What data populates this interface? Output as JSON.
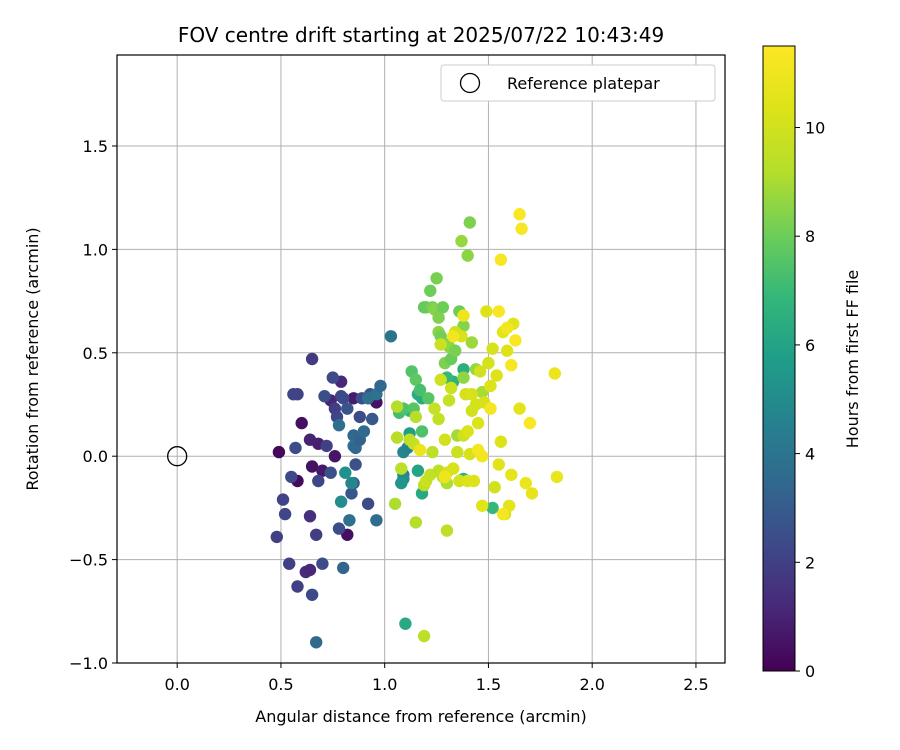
{
  "chart_data": {
    "type": "scatter",
    "title": "FOV centre drift starting at 2025/07/22 10:43:49",
    "xlabel": "Angular distance from reference (arcmin)",
    "ylabel": "Rotation from reference (arcmin)",
    "xlim": [
      -0.29,
      2.64
    ],
    "ylim": [
      -1.0,
      1.94
    ],
    "xticks": [
      "0.0",
      "0.5",
      "1.0",
      "1.5",
      "2.0",
      "2.5"
    ],
    "yticks": [
      "−1.0",
      "−0.5",
      "0.0",
      "0.5",
      "1.0",
      "1.5"
    ],
    "grid": true,
    "legend": {
      "placement": "top-right",
      "entries": [
        "Reference platepar"
      ]
    },
    "reference_point": {
      "x": 0.0,
      "y": 0.0,
      "name": "Reference platepar"
    },
    "colorbar": {
      "label": "Hours from first FF file",
      "colormap": "viridis",
      "range": [
        0,
        11.5
      ],
      "ticks": [
        "0",
        "2",
        "4",
        "6",
        "8",
        "10"
      ]
    },
    "points": [
      [
        0.49,
        0.02,
        0.2
      ],
      [
        0.58,
        -0.12,
        0.3
      ],
      [
        0.6,
        0.16,
        0.4
      ],
      [
        0.65,
        -0.05,
        0.5
      ],
      [
        0.7,
        -0.07,
        0.7
      ],
      [
        0.76,
        0.0,
        0.6
      ],
      [
        0.82,
        -0.38,
        0.4
      ],
      [
        0.85,
        0.28,
        0.8
      ],
      [
        0.96,
        0.26,
        0.5
      ],
      [
        0.68,
        0.06,
        0.9
      ],
      [
        0.64,
        0.08,
        1.0
      ],
      [
        0.74,
        0.27,
        1.1
      ],
      [
        0.79,
        0.36,
        1.2
      ],
      [
        0.62,
        -0.56,
        1.3
      ],
      [
        0.64,
        -0.55,
        1.2
      ],
      [
        0.64,
        -0.29,
        1.4
      ],
      [
        0.48,
        -0.39,
        2.0
      ],
      [
        0.51,
        -0.21,
        2.1
      ],
      [
        0.52,
        -0.28,
        2.2
      ],
      [
        0.54,
        -0.52,
        2.0
      ],
      [
        0.55,
        -0.1,
        2.3
      ],
      [
        0.56,
        0.3,
        2.2
      ],
      [
        0.58,
        0.3,
        2.1
      ],
      [
        0.57,
        0.04,
        2.4
      ],
      [
        0.58,
        -0.63,
        2.0
      ],
      [
        0.65,
        -0.67,
        2.3
      ],
      [
        0.65,
        0.47,
        1.8
      ],
      [
        0.67,
        -0.38,
        1.9
      ],
      [
        0.68,
        -0.12,
        2.2
      ],
      [
        0.7,
        -0.52,
        2.4
      ],
      [
        0.71,
        0.29,
        2.5
      ],
      [
        0.72,
        0.05,
        2.0
      ],
      [
        0.74,
        -0.08,
        2.6
      ],
      [
        0.75,
        0.38,
        2.4
      ],
      [
        0.76,
        0.23,
        1.9
      ],
      [
        0.77,
        0.19,
        2.2
      ],
      [
        0.78,
        -0.35,
        2.5
      ],
      [
        0.79,
        0.29,
        2.1
      ],
      [
        0.8,
        0.28,
        2.3
      ],
      [
        0.82,
        0.23,
        2.7
      ],
      [
        0.84,
        -0.18,
        2.8
      ],
      [
        0.85,
        -0.13,
        3.0
      ],
      [
        0.86,
        -0.04,
        2.6
      ],
      [
        0.88,
        0.19,
        2.4
      ],
      [
        0.89,
        0.28,
        2.5
      ],
      [
        0.92,
        -0.23,
        2.3
      ],
      [
        0.93,
        0.3,
        2.7
      ],
      [
        0.94,
        0.18,
        2.9
      ],
      [
        0.67,
        -0.9,
        3.6
      ],
      [
        0.78,
        0.15,
        3.7
      ],
      [
        0.8,
        -0.54,
        3.3
      ],
      [
        0.83,
        -0.31,
        3.8
      ],
      [
        0.85,
        0.1,
        3.4
      ],
      [
        0.85,
        0.05,
        3.9
      ],
      [
        0.86,
        0.04,
        3.5
      ],
      [
        0.88,
        0.08,
        3.2
      ],
      [
        0.9,
        0.12,
        3.6
      ],
      [
        0.92,
        0.28,
        3.8
      ],
      [
        0.96,
        -0.31,
        3.7
      ],
      [
        0.96,
        0.3,
        3.9
      ],
      [
        0.98,
        0.34,
        3.4
      ],
      [
        1.03,
        0.58,
        4.0
      ],
      [
        1.09,
        -0.09,
        4.6
      ],
      [
        1.09,
        -0.11,
        5.0
      ],
      [
        1.09,
        0.02,
        4.8
      ],
      [
        1.11,
        0.04,
        4.6
      ],
      [
        0.79,
        -0.22,
        5.0
      ],
      [
        0.81,
        -0.08,
        5.2
      ],
      [
        0.84,
        -0.13,
        4.8
      ],
      [
        1.08,
        -0.13,
        5.4
      ],
      [
        1.1,
        -0.81,
        6.2
      ],
      [
        1.12,
        0.11,
        5.8
      ],
      [
        1.16,
        -0.07,
        6.0
      ],
      [
        1.18,
        -0.18,
        6.2
      ],
      [
        1.16,
        0.3,
        6.4
      ],
      [
        1.18,
        0.28,
        6.3
      ],
      [
        1.33,
        0.36,
        6.6
      ],
      [
        1.38,
        0.42,
        6.5
      ],
      [
        1.38,
        -0.11,
        6.7
      ],
      [
        1.52,
        -0.25,
        6.9
      ],
      [
        1.12,
        0.22,
        6.8
      ],
      [
        1.3,
        0.38,
        6.9
      ],
      [
        1.07,
        0.21,
        7.2
      ],
      [
        1.09,
        0.23,
        7.4
      ],
      [
        1.13,
        0.41,
        7.5
      ],
      [
        1.14,
        0.23,
        7.6
      ],
      [
        1.15,
        0.37,
        7.7
      ],
      [
        1.17,
        0.32,
        7.3
      ],
      [
        1.18,
        0.12,
        7.4
      ],
      [
        1.19,
        0.72,
        7.8
      ],
      [
        1.2,
        0.72,
        7.9
      ],
      [
        1.21,
        0.28,
        7.6
      ],
      [
        1.22,
        0.8,
        8.0
      ],
      [
        1.23,
        0.72,
        8.2
      ],
      [
        1.24,
        0.71,
        8.4
      ],
      [
        1.25,
        0.86,
        8.2
      ],
      [
        1.26,
        0.67,
        8.3
      ],
      [
        1.26,
        0.6,
        8.5
      ],
      [
        1.27,
        0.58,
        8.1
      ],
      [
        1.28,
        0.72,
        8.0
      ],
      [
        1.29,
        0.45,
        8.3
      ],
      [
        1.3,
        0.54,
        8.4
      ],
      [
        1.31,
        0.53,
        8.6
      ],
      [
        1.32,
        0.47,
        7.9
      ],
      [
        1.34,
        0.51,
        8.2
      ],
      [
        1.36,
        0.7,
        8.0
      ],
      [
        1.37,
        1.04,
        8.7
      ],
      [
        1.38,
        0.63,
        8.4
      ],
      [
        1.38,
        0.38,
        8.6
      ],
      [
        1.4,
        0.97,
        8.5
      ],
      [
        1.41,
        1.13,
        8.3
      ],
      [
        1.42,
        0.55,
        8.8
      ],
      [
        1.44,
        0.42,
        8.7
      ],
      [
        1.47,
        0.31,
        9.0
      ],
      [
        1.35,
        0.1,
        8.9
      ],
      [
        1.3,
        -0.13,
        9.1
      ],
      [
        1.06,
        0.24,
        9.2
      ],
      [
        1.06,
        0.09,
        9.3
      ],
      [
        1.08,
        -0.06,
        9.4
      ],
      [
        1.05,
        -0.23,
        9.1
      ],
      [
        1.12,
        0.08,
        9.5
      ],
      [
        1.14,
        0.06,
        9.6
      ],
      [
        1.15,
        -0.32,
        9.2
      ],
      [
        1.15,
        0.19,
        9.3
      ],
      [
        1.19,
        -0.87,
        9.4
      ],
      [
        1.19,
        -0.14,
        9.5
      ],
      [
        1.2,
        -0.12,
        9.8
      ],
      [
        1.22,
        -0.09,
        9.6
      ],
      [
        1.23,
        0.02,
        9.4
      ],
      [
        1.24,
        0.23,
        9.7
      ],
      [
        1.26,
        -0.07,
        9.5
      ],
      [
        1.26,
        0.18,
        9.6
      ],
      [
        1.27,
        0.37,
        9.9
      ],
      [
        1.27,
        0.54,
        9.8
      ],
      [
        1.28,
        -0.1,
        9.4
      ],
      [
        1.29,
        0.08,
        10.0
      ],
      [
        1.3,
        -0.36,
        9.5
      ],
      [
        1.3,
        -0.08,
        10.1
      ],
      [
        1.31,
        0.27,
        9.7
      ],
      [
        1.32,
        0.33,
        9.9
      ],
      [
        1.33,
        -0.06,
        10.2
      ],
      [
        1.34,
        0.6,
        10.0
      ],
      [
        1.35,
        0.02,
        9.8
      ],
      [
        1.36,
        -0.12,
        10.1
      ],
      [
        1.37,
        0.58,
        10.2
      ],
      [
        1.38,
        0.1,
        9.9
      ],
      [
        1.39,
        0.3,
        10.1
      ],
      [
        1.4,
        0.12,
        10.3
      ],
      [
        1.41,
        0.01,
        10.2
      ],
      [
        1.42,
        0.22,
        10.0
      ],
      [
        1.43,
        -0.12,
        10.4
      ],
      [
        1.44,
        0.25,
        10.1
      ],
      [
        1.45,
        0.16,
        10.3
      ],
      [
        1.46,
        0.41,
        10.0
      ],
      [
        1.47,
        -0.24,
        10.5
      ],
      [
        1.48,
        0.26,
        10.2
      ],
      [
        1.49,
        0.7,
        10.4
      ],
      [
        1.5,
        0.45,
        10.1
      ],
      [
        1.51,
        0.34,
        10.3
      ],
      [
        1.52,
        0.52,
        10.2
      ],
      [
        1.53,
        -0.15,
        10.0
      ],
      [
        1.54,
        0.39,
        10.4
      ],
      [
        1.55,
        -0.04,
        10.5
      ],
      [
        1.56,
        0.07,
        10.3
      ],
      [
        1.57,
        0.6,
        10.6
      ],
      [
        1.58,
        -0.28,
        10.2
      ],
      [
        1.59,
        0.51,
        10.4
      ],
      [
        1.6,
        -0.24,
        10.6
      ],
      [
        1.61,
        -0.09,
        10.7
      ],
      [
        1.62,
        0.64,
        10.5
      ],
      [
        1.65,
        0.23,
        10.6
      ],
      [
        1.68,
        -0.13,
        10.8
      ],
      [
        1.71,
        -0.18,
        10.7
      ],
      [
        1.82,
        0.4,
        10.9
      ],
      [
        1.83,
        -0.1,
        10.8
      ],
      [
        1.4,
        -0.12,
        10.3
      ],
      [
        1.42,
        0.3,
        10.2
      ],
      [
        1.17,
        0.03,
        10.9
      ],
      [
        1.29,
        -0.1,
        11.0
      ],
      [
        1.33,
        0.58,
        11.1
      ],
      [
        1.38,
        0.68,
        11.0
      ],
      [
        1.45,
        0.03,
        11.2
      ],
      [
        1.47,
        0.0,
        11.1
      ],
      [
        1.51,
        0.23,
        11.2
      ],
      [
        1.55,
        0.7,
        11.3
      ],
      [
        1.56,
        0.95,
        11.3
      ],
      [
        1.57,
        -0.28,
        11.2
      ],
      [
        1.59,
        0.62,
        11.1
      ],
      [
        1.61,
        0.44,
        11.3
      ],
      [
        1.63,
        0.56,
        11.4
      ],
      [
        1.65,
        1.17,
        11.4
      ],
      [
        1.66,
        1.1,
        11.3
      ],
      [
        1.7,
        0.16,
        11.4
      ]
    ]
  }
}
